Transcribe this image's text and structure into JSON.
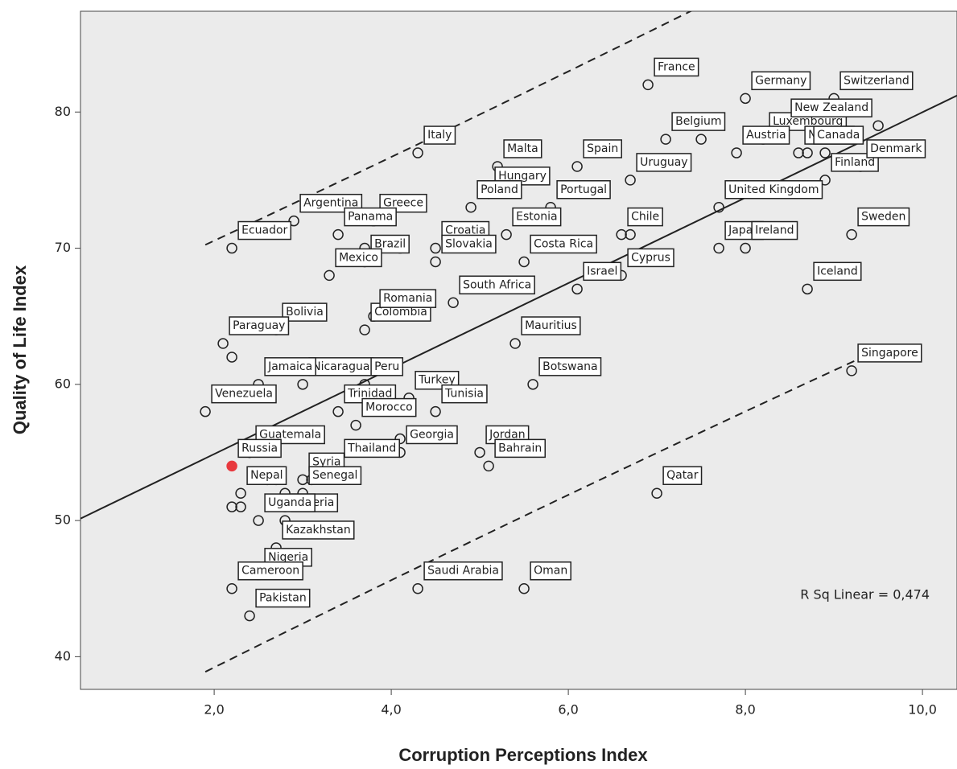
{
  "chart_data": {
    "type": "scatter",
    "xlabel": "Corruption Perceptions Index",
    "ylabel": "Quality of Life Index",
    "annotation": "R Sq Linear = 0,474",
    "xlim": [
      0.49,
      10.39
    ],
    "ylim": [
      37.6,
      87.4
    ],
    "xticks": [
      {
        "value": 2,
        "label": "2,0"
      },
      {
        "value": 4,
        "label": "4,0"
      },
      {
        "value": 6,
        "label": "6,0"
      },
      {
        "value": 8,
        "label": "8,0"
      },
      {
        "value": 10,
        "label": "10,0"
      }
    ],
    "yticks": [
      40,
      50,
      60,
      70,
      80
    ],
    "background": "#ebebeb",
    "marker_color": "#222222",
    "highlight": {
      "index": 63,
      "color": "#e8393e"
    },
    "labels": [
      "France",
      "Germany",
      "Switzerland",
      "Belgium",
      null,
      "Luxembourg",
      "New Zealand",
      "Norway",
      "Canada",
      null,
      "Austria",
      "Finland",
      "Denmark",
      "Spain",
      "Portugal",
      "Uruguay",
      "Italy",
      "Malta",
      "Hungary",
      "Greece",
      "Argentina",
      "Ecuador",
      "Poland",
      null,
      "Estonia",
      "United Kingdom",
      "Croatia",
      "Slovakia",
      "Costa Rica",
      "Chile",
      null,
      "Japan",
      "Ireland",
      "Sweden",
      "Panama",
      "Brazil",
      null,
      null,
      "Mexico",
      "South Africa",
      "Israel",
      "Cyprus",
      "Iceland",
      "Bolivia",
      "Colombia",
      "Romania",
      "Paraguay",
      null,
      "Mauritius",
      "Turkey",
      "Tunisia",
      "Trinidad",
      "Nicaragua",
      "Jamaica",
      "Peru",
      "Botswana",
      "Singapore",
      "Venezuela",
      "Guatemala",
      "Morocco",
      null,
      "Georgia",
      null,
      "Russia",
      "Jordan",
      "Bahrain",
      "Syria",
      null,
      null,
      null,
      "Thailand",
      null,
      "Qatar",
      "Nepal",
      null,
      null,
      "Senegal",
      null,
      null,
      "Algeria",
      "Uganda",
      "Kazakhstan",
      "Nigeria",
      "Cameroon",
      "Pakistan",
      "Saudi Arabia",
      "Oman"
    ],
    "x": [
      6.9,
      8.0,
      9.0,
      7.1,
      7.5,
      8.2,
      9.5,
      8.6,
      8.7,
      8.9,
      7.9,
      8.9,
      9.3,
      6.1,
      5.8,
      6.7,
      4.3,
      5.2,
      5.1,
      3.8,
      2.9,
      2.2,
      4.9,
      5.0,
      5.3,
      7.7,
      4.5,
      4.5,
      5.5,
      6.6,
      6.7,
      7.7,
      8.0,
      9.2,
      3.4,
      3.7,
      3.7,
      4.1,
      3.3,
      4.7,
      6.1,
      6.6,
      8.7,
      2.7,
      3.7,
      3.8,
      2.1,
      2.2,
      5.4,
      4.2,
      4.5,
      3.4,
      3.0,
      2.5,
      3.7,
      5.6,
      9.2,
      1.9,
      2.4,
      3.6,
      4.1,
      4.1,
      2.4,
      2.2,
      5.0,
      5.1,
      3.0,
      3.1,
      2.7,
      2.6,
      3.4,
      3.3,
      7.0,
      2.3,
      2.2,
      2.3,
      3.0,
      2.8,
      2.8,
      2.8,
      2.5,
      2.7,
      2.5,
      2.2,
      2.4,
      4.3,
      5.5
    ],
    "y": [
      82,
      81,
      81,
      78,
      78,
      78,
      79,
      77,
      77,
      77,
      77,
      75,
      76,
      76,
      73,
      75,
      77,
      76,
      74,
      72,
      72,
      70,
      73,
      71,
      71,
      73,
      70,
      69,
      69,
      71,
      71,
      70,
      70,
      71,
      71,
      69,
      70,
      70,
      68,
      66,
      67,
      68,
      67,
      64,
      64,
      65,
      63,
      62,
      63,
      59,
      58,
      58,
      60,
      60,
      60,
      60,
      61,
      58,
      55,
      57,
      56,
      55,
      55,
      54,
      55,
      54,
      53,
      53,
      53,
      53,
      54,
      54,
      52,
      52,
      51,
      51,
      52,
      52,
      51,
      50,
      50,
      48,
      46,
      45,
      43,
      45,
      45
    ]
  }
}
